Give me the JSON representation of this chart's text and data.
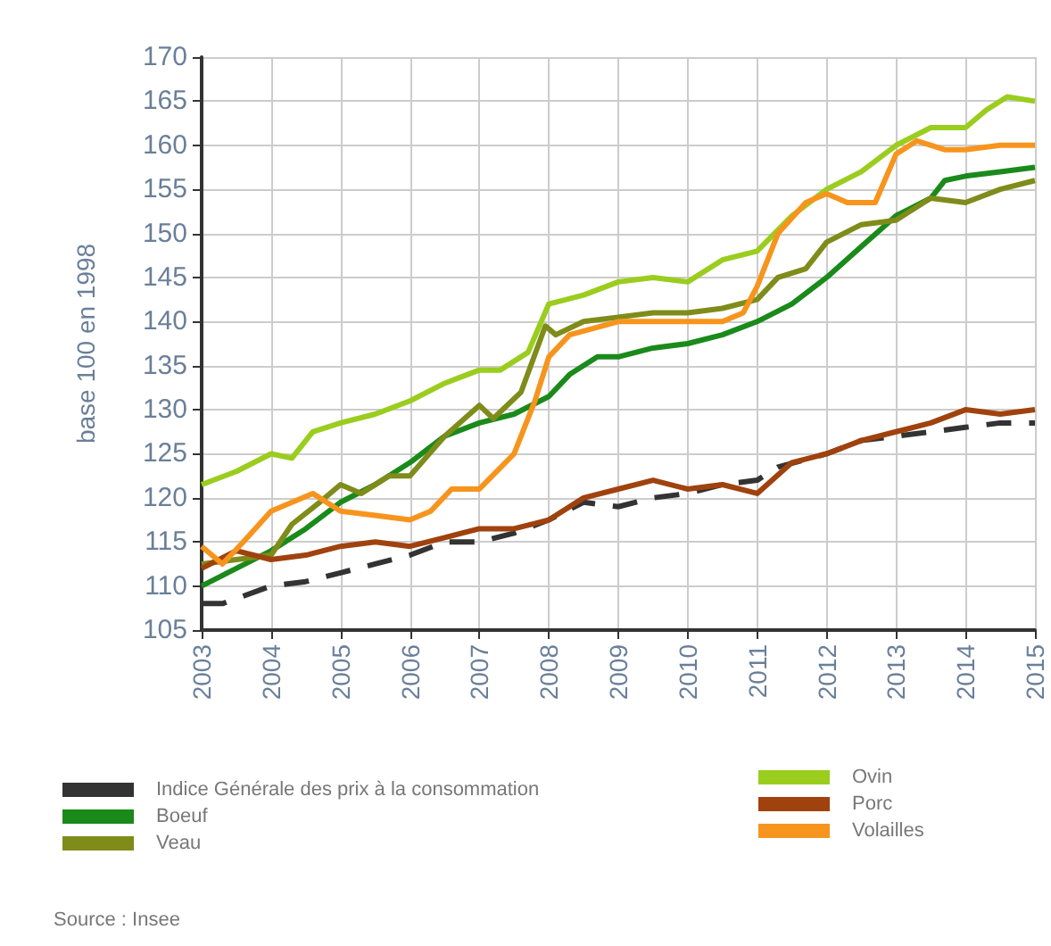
{
  "chart_data": {
    "type": "line",
    "ylabel": "base 100 en 1998",
    "annotations": [
      "Source : Insee"
    ],
    "xlim": [
      2003,
      2015
    ],
    "xticks": [
      2003,
      2004,
      2005,
      2006,
      2007,
      2008,
      2009,
      2010,
      2011,
      2012,
      2013,
      2014,
      2015
    ],
    "ylim": [
      105,
      170
    ],
    "yticks": [
      105,
      110,
      115,
      120,
      125,
      130,
      135,
      140,
      145,
      150,
      155,
      160,
      165,
      170
    ],
    "grid": true,
    "legend": "bottom",
    "marker": "none",
    "series": [
      {
        "name": "Indice Générale des prix à la consommation",
        "color": "#333333",
        "line_style": "dashed",
        "x": [
          2003,
          2003.3,
          2004,
          2004.5,
          2005,
          2005.5,
          2006,
          2006.5,
          2007,
          2007.5,
          2008,
          2008.5,
          2009,
          2009.5,
          2010,
          2010.5,
          2011,
          2011.3,
          2012,
          2012.5,
          2013,
          2013.5,
          2014,
          2014.5,
          2015
        ],
        "values": [
          108,
          108,
          110,
          110.5,
          111.5,
          112.5,
          113.5,
          115,
          115,
          116,
          117.5,
          119.5,
          119,
          120,
          120.5,
          121.5,
          122,
          123.5,
          125,
          126.5,
          127,
          127.5,
          128,
          128.5,
          128.5
        ]
      },
      {
        "name": "Boeuf",
        "color": "#1a8a1a",
        "x": [
          2003,
          2003.5,
          2004,
          2004.5,
          2005,
          2005.5,
          2006,
          2006.5,
          2007,
          2007.5,
          2008,
          2008.3,
          2008.7,
          2009,
          2009.5,
          2010,
          2010.5,
          2011,
          2011.5,
          2012,
          2012.5,
          2013,
          2013.5,
          2013.7,
          2014,
          2014.5,
          2015
        ],
        "values": [
          110,
          112,
          114,
          116.5,
          119.5,
          121.5,
          124,
          127,
          128.5,
          129.5,
          131.5,
          134,
          136,
          136,
          137,
          137.5,
          138.5,
          140,
          142,
          145,
          148.5,
          152,
          154,
          156,
          156.5,
          157,
          157.5
        ]
      },
      {
        "name": "Veau",
        "color": "#7f8c1a",
        "x": [
          2003,
          2003.5,
          2004,
          2004.3,
          2004.7,
          2005,
          2005.3,
          2005.7,
          2006,
          2006.5,
          2007,
          2007.2,
          2007.6,
          2007.95,
          2008.1,
          2008.5,
          2009,
          2009.5,
          2010,
          2010.5,
          2011,
          2011.3,
          2011.7,
          2012,
          2012.5,
          2013,
          2013.5,
          2014,
          2014.5,
          2015
        ],
        "values": [
          112.5,
          113,
          113.5,
          117,
          119.5,
          121.5,
          120.5,
          122.5,
          122.5,
          127,
          130.5,
          129,
          132,
          139.5,
          138.5,
          140,
          140.5,
          141,
          141,
          141.5,
          142.5,
          145,
          146,
          149,
          151,
          151.5,
          154,
          153.5,
          155,
          156
        ]
      },
      {
        "name": "Ovin",
        "color": "#9acd1e",
        "x": [
          2003,
          2003.5,
          2004,
          2004.3,
          2004.6,
          2005,
          2005.5,
          2006,
          2006.5,
          2007,
          2007.3,
          2007.7,
          2008,
          2008.5,
          2009,
          2009.5,
          2010,
          2010.5,
          2011,
          2011.5,
          2012,
          2012.5,
          2013,
          2013.5,
          2014,
          2014.3,
          2014.6,
          2015
        ],
        "values": [
          121.5,
          123,
          125,
          124.5,
          127.5,
          128.5,
          129.5,
          131,
          133,
          134.5,
          134.5,
          136.5,
          142,
          143,
          144.5,
          145,
          144.5,
          147,
          148,
          152,
          155,
          157,
          160,
          162,
          162,
          164,
          165.5,
          165
        ]
      },
      {
        "name": "Porc",
        "color": "#a0420e",
        "x": [
          2003,
          2003.5,
          2004,
          2004.5,
          2005,
          2005.5,
          2006,
          2006.5,
          2007,
          2007.5,
          2008,
          2008.5,
          2009,
          2009.5,
          2010,
          2010.5,
          2011,
          2011.5,
          2012,
          2012.5,
          2013,
          2013.5,
          2014,
          2014.5,
          2015
        ],
        "values": [
          112,
          114,
          113,
          113.5,
          114.5,
          115,
          114.5,
          115.5,
          116.5,
          116.5,
          117.5,
          120,
          121,
          122,
          121,
          121.5,
          120.5,
          124,
          125,
          126.5,
          127.5,
          128.5,
          130,
          129.5,
          130
        ]
      },
      {
        "name": "Volailles",
        "color": "#f7941d",
        "x": [
          2003,
          2003.3,
          2003.6,
          2004,
          2004.6,
          2005,
          2005.5,
          2006,
          2006.3,
          2006.6,
          2007,
          2007.5,
          2007.8,
          2008,
          2008.3,
          2009,
          2009.5,
          2010,
          2010.5,
          2010.8,
          2011,
          2011.3,
          2011.7,
          2012,
          2012.3,
          2012.7,
          2013,
          2013.3,
          2013.7,
          2014,
          2014.5,
          2015
        ],
        "values": [
          114.5,
          112.5,
          115,
          118.5,
          120.5,
          118.5,
          118,
          117.5,
          118.5,
          121,
          121,
          125,
          131,
          136,
          138.5,
          140,
          140,
          140,
          140,
          141,
          144,
          150,
          153.5,
          154.5,
          153.5,
          153.5,
          159,
          160.5,
          159.5,
          159.5,
          160,
          160
        ]
      }
    ]
  }
}
